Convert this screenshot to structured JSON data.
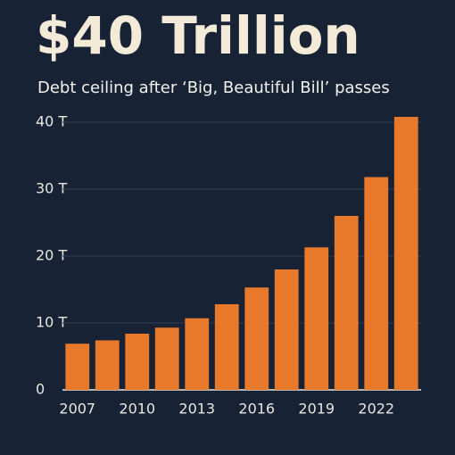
{
  "chart_data": {
    "type": "bar",
    "title": "$40 Trillion",
    "subtitle": "Debt ceiling after ‘Big, Beautiful Bill’ passes",
    "categories": [
      "2007",
      null,
      "2010",
      null,
      "2013",
      null,
      "2016",
      null,
      "2019",
      null,
      "2022",
      null
    ],
    "values": [
      6.9,
      7.4,
      8.4,
      9.3,
      10.7,
      12.8,
      15.3,
      18,
      21.3,
      26,
      31.8,
      40.8
    ],
    "color": "#e8792b",
    "ylim": [
      0,
      42
    ],
    "yticks": [
      0,
      {
        "value": 10,
        "label": "10 T"
      },
      {
        "value": 20,
        "label": "20 T"
      },
      {
        "value": 30,
        "label": "30 T"
      },
      {
        "value": 40,
        "label": "40 T"
      }
    ],
    "grid": true
  }
}
